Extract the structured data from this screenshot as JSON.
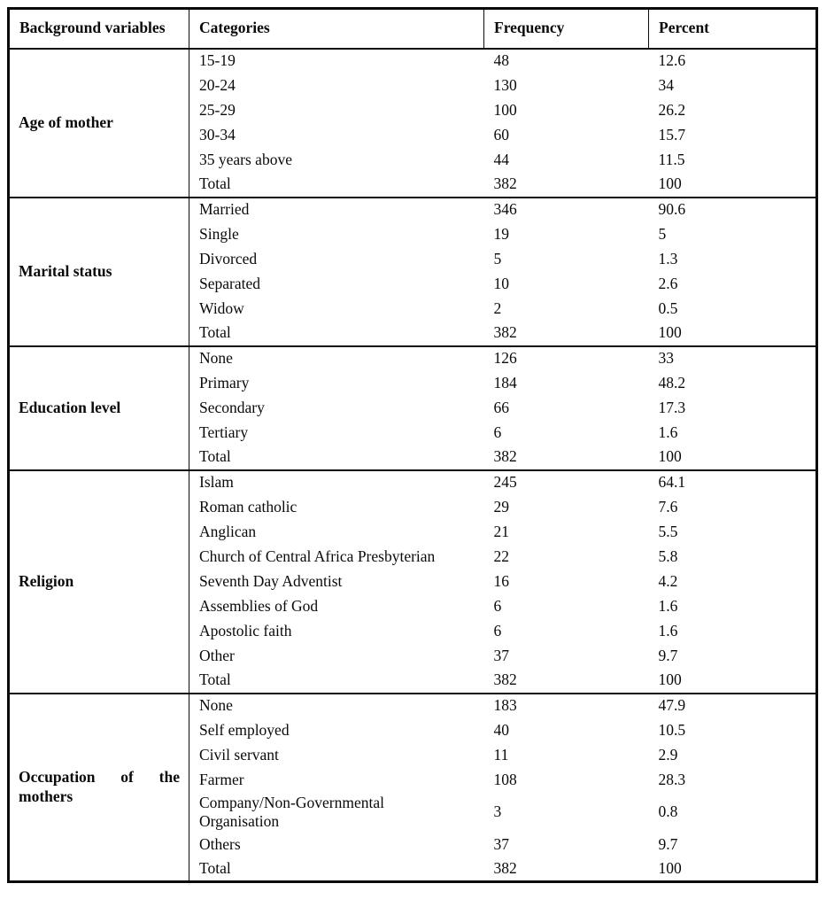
{
  "page": {
    "background_color": "#ffffff",
    "text_color": "#0a0a0a",
    "border_color": "#0a0a0a"
  },
  "table": {
    "headers": [
      "Background variables",
      "Categories",
      "Frequency",
      "Percent"
    ],
    "sections": [
      {
        "variable": "Age of mother",
        "rows": [
          {
            "category": "15-19",
            "frequency": "48",
            "percent": "12.6"
          },
          {
            "category": "20-24",
            "frequency": "130",
            "percent": "34"
          },
          {
            "category": "25-29",
            "frequency": "100",
            "percent": "26.2"
          },
          {
            "category": "30-34",
            "frequency": "60",
            "percent": "15.7"
          },
          {
            "category": "35 years above",
            "frequency": "44",
            "percent": "11.5"
          },
          {
            "category": "Total",
            "frequency": "382",
            "percent": "100"
          }
        ]
      },
      {
        "variable": "Marital status",
        "rows": [
          {
            "category": "Married",
            "frequency": "346",
            "percent": "90.6"
          },
          {
            "category": "Single",
            "frequency": "19",
            "percent": "5"
          },
          {
            "category": "Divorced",
            "frequency": "5",
            "percent": "1.3"
          },
          {
            "category": "Separated",
            "frequency": "10",
            "percent": "2.6"
          },
          {
            "category": "Widow",
            "frequency": "2",
            "percent": "0.5"
          },
          {
            "category": "Total",
            "frequency": "382",
            "percent": "100"
          }
        ]
      },
      {
        "variable": "Education level",
        "rows": [
          {
            "category": "None",
            "frequency": "126",
            "percent": "33"
          },
          {
            "category": "Primary",
            "frequency": "184",
            "percent": "48.2"
          },
          {
            "category": "Secondary",
            "frequency": "66",
            "percent": "17.3"
          },
          {
            "category": "Tertiary",
            "frequency": "6",
            "percent": "1.6"
          },
          {
            "category": "Total",
            "frequency": "382",
            "percent": "100"
          }
        ]
      },
      {
        "variable": "Religion",
        "rows": [
          {
            "category": "Islam",
            "frequency": "245",
            "percent": "64.1"
          },
          {
            "category": "Roman catholic",
            "frequency": "29",
            "percent": "7.6"
          },
          {
            "category": "Anglican",
            "frequency": "21",
            "percent": "5.5"
          },
          {
            "category": "Church of Central Africa Presbyterian",
            "frequency": "22",
            "percent": "5.8"
          },
          {
            "category": "Seventh Day Adventist",
            "frequency": "16",
            "percent": "4.2"
          },
          {
            "category": "Assemblies of God",
            "frequency": "6",
            "percent": "1.6"
          },
          {
            "category": "Apostolic faith",
            "frequency": "6",
            "percent": "1.6"
          },
          {
            "category": "Other",
            "frequency": "37",
            "percent": "9.7"
          },
          {
            "category": "Total",
            "frequency": "382",
            "percent": "100"
          }
        ]
      },
      {
        "variable": "Occupation of the mothers",
        "rows": [
          {
            "category": "None",
            "frequency": "183",
            "percent": "47.9"
          },
          {
            "category": "Self employed",
            "frequency": "40",
            "percent": "10.5"
          },
          {
            "category": "Civil servant",
            "frequency": "11",
            "percent": "2.9"
          },
          {
            "category": "Farmer",
            "frequency": "108",
            "percent": "28.3"
          },
          {
            "category": "Company/Non-Governmental\nOrganisation",
            "frequency": "3",
            "percent": "0.8"
          },
          {
            "category": "Others",
            "frequency": "37",
            "percent": "9.7"
          },
          {
            "category": "Total",
            "frequency": "382",
            "percent": "100"
          }
        ]
      }
    ]
  }
}
